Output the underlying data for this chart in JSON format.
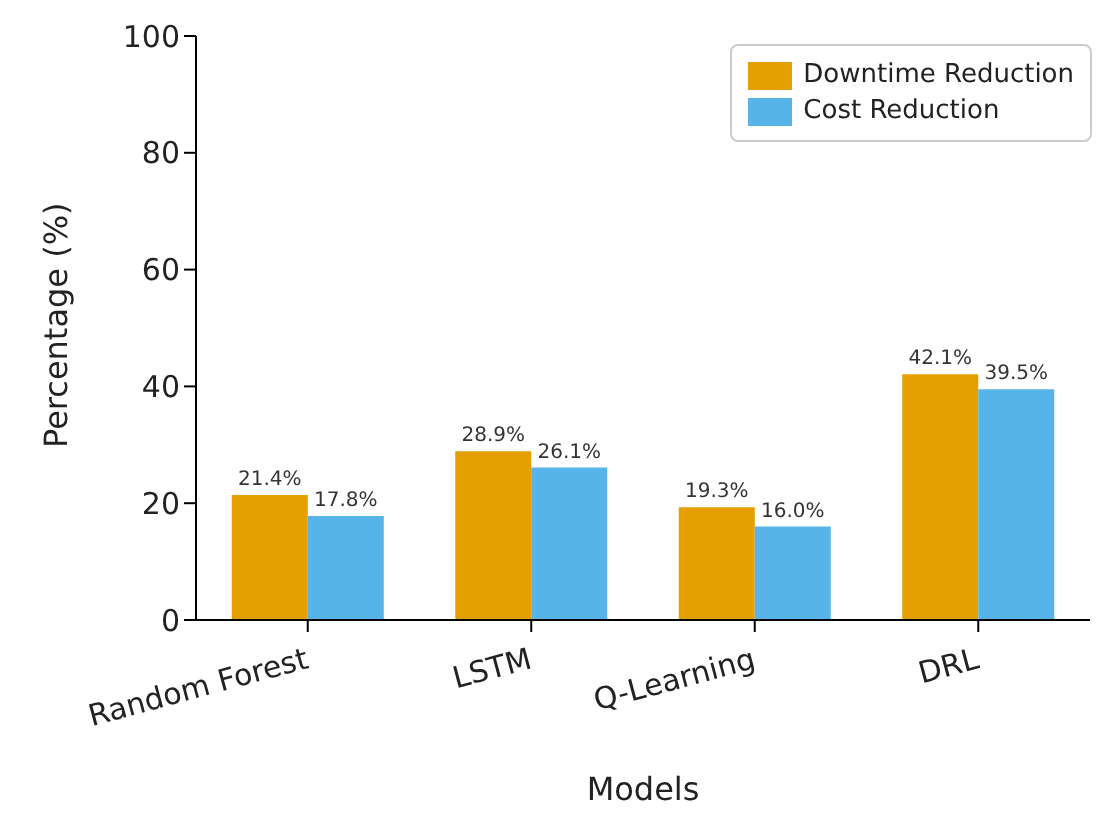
{
  "chart_data": {
    "type": "bar",
    "xlabel": "Models",
    "ylabel": "Percentage (%)",
    "categories": [
      "Random Forest",
      "LSTM",
      "Q-Learning",
      "DRL"
    ],
    "series": [
      {
        "name": "Downtime Reduction",
        "color": "#e69f00",
        "values": [
          21.4,
          28.9,
          19.3,
          42.1
        ],
        "value_labels": [
          "21.4%",
          "28.9%",
          "19.3%",
          "42.1%"
        ]
      },
      {
        "name": "Cost Reduction",
        "color": "#56b4e9",
        "values": [
          17.8,
          26.1,
          16.0,
          39.5
        ],
        "value_labels": [
          "17.8%",
          "26.1%",
          "16.0%",
          "39.5%"
        ]
      }
    ],
    "ylim": [
      0,
      100
    ],
    "yticks": [
      0,
      20,
      40,
      60,
      80,
      100
    ],
    "grid": false,
    "legend": "top right"
  }
}
